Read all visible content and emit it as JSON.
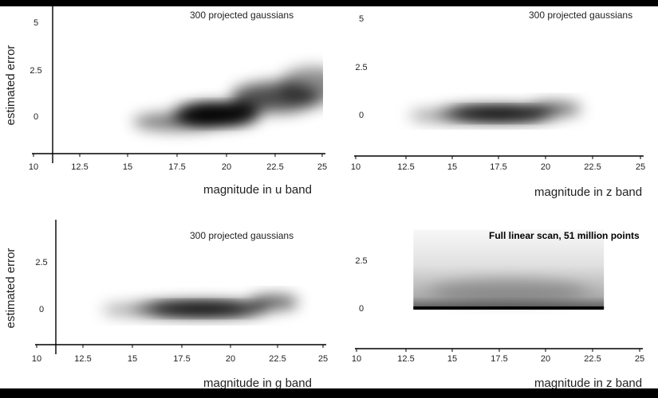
{
  "chart_data": [
    {
      "type": "heatmap",
      "title": "300 projected gaussians",
      "xlabel": "magnitude in u band",
      "ylabel": "estimated error",
      "x_ticks": [
        "10",
        "12.5",
        "15",
        "17.5",
        "20",
        "22.5",
        "25"
      ],
      "y_ticks": [
        "5",
        "2.5",
        "0"
      ],
      "y_tick_values": [
        5,
        2.5,
        0
      ],
      "xlim": [
        10,
        25
      ],
      "ylim": [
        -2.5,
        5.3
      ],
      "density_peaks": [
        {
          "x": 19.5,
          "y": 0.1,
          "x_spread": 2.3,
          "y_spread": 0.55,
          "weight": 1.0
        },
        {
          "x": 17.5,
          "y": -0.3,
          "x_spread": 2.3,
          "y_spread": 0.45,
          "weight": 0.55
        },
        {
          "x": 22.5,
          "y": 1.0,
          "x_spread": 2.3,
          "y_spread": 0.8,
          "weight": 0.7
        },
        {
          "x": 24.5,
          "y": 1.6,
          "x_spread": 1.8,
          "y_spread": 1.0,
          "weight": 0.45
        }
      ]
    },
    {
      "type": "heatmap",
      "title": "300 projected gaussians",
      "xlabel": "magnitude in z band",
      "ylabel": "",
      "x_ticks": [
        "10",
        "12.5",
        "15",
        "17.5",
        "20",
        "22.5",
        "25"
      ],
      "y_ticks": [
        "5",
        "2.5",
        "0"
      ],
      "y_tick_values": [
        5,
        2.5,
        0
      ],
      "xlim": [
        10,
        25
      ],
      "ylim": [
        -2.5,
        5.3
      ],
      "density_peaks": [
        {
          "x": 17.5,
          "y": 0.05,
          "x_spread": 3.2,
          "y_spread": 0.35,
          "weight": 1.0
        },
        {
          "x": 20.5,
          "y": 0.3,
          "x_spread": 1.4,
          "y_spread": 0.35,
          "weight": 0.6
        },
        {
          "x": 14.5,
          "y": -0.05,
          "x_spread": 1.8,
          "y_spread": 0.25,
          "weight": 0.5
        }
      ]
    },
    {
      "type": "heatmap",
      "title": "300 projected gaussians",
      "xlabel": "magnitude in g band",
      "ylabel": "estimated error",
      "x_ticks": [
        "10",
        "12.5",
        "15",
        "17.5",
        "20",
        "22.5",
        "25"
      ],
      "y_ticks": [
        "2.5",
        "0"
      ],
      "y_tick_values": [
        2.5,
        0
      ],
      "xlim": [
        10,
        25
      ],
      "ylim": [
        -2.2,
        4.1
      ],
      "density_peaks": [
        {
          "x": 18.5,
          "y": 0.0,
          "x_spread": 3.6,
          "y_spread": 0.35,
          "weight": 1.0
        },
        {
          "x": 22.3,
          "y": 0.35,
          "x_spread": 1.3,
          "y_spread": 0.35,
          "weight": 0.7
        },
        {
          "x": 15.0,
          "y": -0.05,
          "x_spread": 1.6,
          "y_spread": 0.25,
          "weight": 0.45
        }
      ]
    },
    {
      "type": "heatmap",
      "title": "Full linear scan, 51 million points",
      "xlabel": "magnitude in z band",
      "ylabel": "",
      "x_ticks": [
        "10",
        "12.5",
        "15",
        "17.5",
        "20",
        "22.5",
        "25"
      ],
      "y_ticks": [
        "2.5",
        "0"
      ],
      "y_tick_values": [
        2.5,
        0
      ],
      "xlim": [
        10,
        25
      ],
      "ylim": [
        -2.2,
        4.1
      ],
      "data_xrange": [
        12.9,
        23.1
      ],
      "data_yrange": [
        0,
        4.1
      ]
    }
  ]
}
